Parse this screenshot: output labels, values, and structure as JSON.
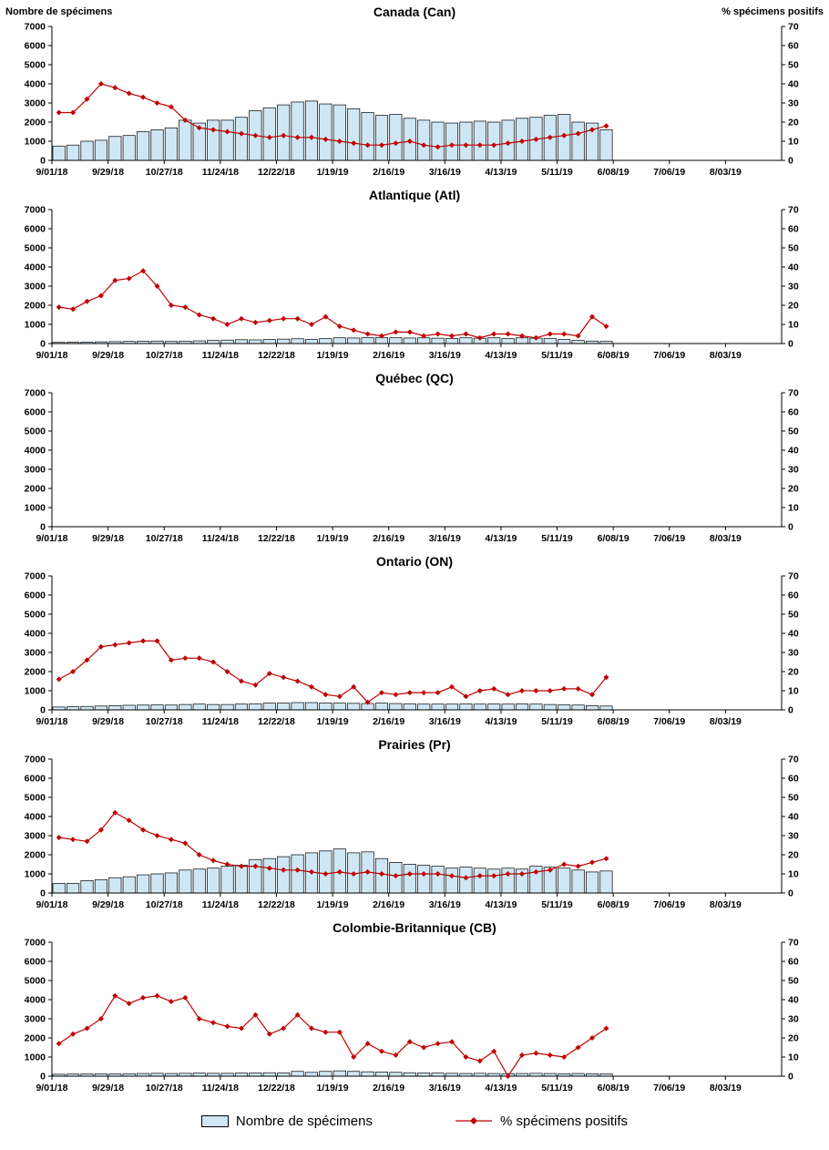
{
  "axis_captions": {
    "left": "Nombre de spécimens",
    "right": "% spécimens positifs"
  },
  "legend": {
    "bars": "Nombre de spécimens",
    "line": "% spécimens positifs"
  },
  "colors": {
    "bar_fill": "#cfe7f5",
    "bar_stroke": "#000000",
    "line": "#c00000"
  },
  "x_axis": {
    "labels": [
      "9/01/18",
      "9/29/18",
      "10/27/18",
      "11/24/18",
      "12/22/18",
      "1/19/19",
      "2/16/19",
      "3/16/19",
      "4/13/19",
      "5/11/19",
      "6/08/19",
      "7/06/19",
      "8/03/19"
    ],
    "weeks_total": 52,
    "label_interval": 4
  },
  "y_axis_left": {
    "min": 0,
    "max": 7000,
    "step": 1000,
    "label": "Nombre de spécimens"
  },
  "y_axis_right": {
    "min": 0,
    "max": 70,
    "step": 10,
    "label": "% spécimens positifs"
  },
  "chart_data": [
    {
      "title": "Canada (Can)",
      "type": "bar+line",
      "series": [
        {
          "name": "Nombre de spécimens",
          "type": "bar",
          "axis": "left",
          "values": [
            750,
            800,
            1000,
            1050,
            1250,
            1300,
            1500,
            1600,
            1700,
            2100,
            1950,
            2100,
            2100,
            2250,
            2600,
            2750,
            2900,
            3050,
            3100,
            2950,
            2900,
            2700,
            2500,
            2350,
            2400,
            2200,
            2100,
            2000,
            1950,
            2000,
            2050,
            2000,
            2100,
            2200,
            2250,
            2350,
            2400,
            2000,
            1950,
            1600
          ]
        },
        {
          "name": "% spécimens positifs",
          "type": "line",
          "axis": "right",
          "values": [
            25,
            25,
            32,
            40,
            38,
            35,
            33,
            30,
            28,
            21,
            17,
            16,
            15,
            14,
            13,
            12,
            13,
            12,
            12,
            11,
            10,
            9,
            8,
            8,
            9,
            10,
            8,
            7,
            8,
            8,
            8,
            8,
            9,
            10,
            11,
            12,
            13,
            14,
            16,
            18
          ]
        }
      ]
    },
    {
      "title": "Atlantique (Atl)",
      "type": "bar+line",
      "series": [
        {
          "name": "Nombre de spécimens",
          "type": "bar",
          "axis": "left",
          "values": [
            60,
            70,
            80,
            90,
            100,
            110,
            120,
            130,
            110,
            120,
            140,
            160,
            180,
            200,
            190,
            210,
            230,
            250,
            210,
            260,
            300,
            290,
            310,
            320,
            300,
            290,
            300,
            280,
            260,
            300,
            280,
            300,
            260,
            300,
            280,
            260,
            210,
            160,
            130,
            110
          ]
        },
        {
          "name": "% spécimens positifs",
          "type": "line",
          "axis": "right",
          "values": [
            19,
            18,
            22,
            25,
            33,
            34,
            38,
            30,
            20,
            19,
            15,
            13,
            10,
            13,
            11,
            12,
            13,
            13,
            10,
            14,
            9,
            7,
            5,
            4,
            6,
            6,
            4,
            5,
            4,
            5,
            3,
            5,
            5,
            4,
            3,
            5,
            5,
            4,
            14,
            9
          ]
        }
      ]
    },
    {
      "title": "Québec (QC)",
      "type": "bar+line",
      "series": [
        {
          "name": "Nombre de spécimens",
          "type": "bar",
          "axis": "left",
          "values": []
        },
        {
          "name": "% spécimens positifs",
          "type": "line",
          "axis": "right",
          "values": []
        }
      ]
    },
    {
      "title": "Ontario (ON)",
      "type": "bar+line",
      "series": [
        {
          "name": "Nombre de spécimens",
          "type": "bar",
          "axis": "left",
          "values": [
            150,
            160,
            180,
            200,
            220,
            240,
            250,
            260,
            250,
            280,
            300,
            280,
            280,
            300,
            320,
            350,
            350,
            380,
            380,
            360,
            350,
            340,
            330,
            350,
            330,
            320,
            300,
            300,
            300,
            310,
            300,
            310,
            300,
            320,
            300,
            280,
            260,
            250,
            220,
            200
          ]
        },
        {
          "name": "% spécimens positifs",
          "type": "line",
          "axis": "right",
          "values": [
            16,
            20,
            26,
            33,
            34,
            35,
            36,
            36,
            26,
            27,
            27,
            25,
            20,
            15,
            13,
            19,
            17,
            15,
            12,
            8,
            7,
            12,
            4,
            9,
            8,
            9,
            9,
            9,
            12,
            7,
            10,
            11,
            8,
            10,
            10,
            10,
            11,
            11,
            8,
            17
          ]
        }
      ]
    },
    {
      "title": "Prairies (Pr)",
      "type": "bar+line",
      "series": [
        {
          "name": "Nombre de spécimens",
          "type": "bar",
          "axis": "left",
          "values": [
            500,
            500,
            650,
            700,
            800,
            850,
            950,
            1000,
            1050,
            1200,
            1250,
            1300,
            1400,
            1450,
            1750,
            1800,
            1900,
            2000,
            2100,
            2200,
            2300,
            2100,
            2150,
            1800,
            1600,
            1500,
            1450,
            1400,
            1300,
            1350,
            1300,
            1250,
            1300,
            1250,
            1400,
            1350,
            1300,
            1200,
            1100,
            1150
          ]
        },
        {
          "name": "% spécimens positifs",
          "type": "line",
          "axis": "right",
          "values": [
            29,
            28,
            27,
            33,
            42,
            38,
            33,
            30,
            28,
            26,
            20,
            17,
            15,
            14,
            14,
            13,
            12,
            12,
            11,
            10,
            11,
            10,
            11,
            10,
            9,
            10,
            10,
            10,
            9,
            8,
            9,
            9,
            10,
            10,
            11,
            12,
            15,
            14,
            16,
            18
          ]
        }
      ]
    },
    {
      "title": "Colombie-Britannique (CB)",
      "type": "bar+line",
      "series": [
        {
          "name": "Nombre de spécimens",
          "type": "bar",
          "axis": "left",
          "values": [
            100,
            110,
            120,
            130,
            120,
            130,
            140,
            150,
            140,
            150,
            160,
            150,
            150,
            160,
            170,
            180,
            170,
            250,
            200,
            250,
            280,
            250,
            230,
            220,
            200,
            180,
            170,
            160,
            150,
            140,
            150,
            140,
            130,
            140,
            150,
            140,
            130,
            140,
            130,
            120
          ]
        },
        {
          "name": "% spécimens positifs",
          "type": "line",
          "axis": "right",
          "values": [
            17,
            22,
            25,
            30,
            42,
            38,
            41,
            42,
            39,
            41,
            30,
            28,
            26,
            25,
            32,
            22,
            25,
            32,
            25,
            23,
            23,
            10,
            17,
            13,
            11,
            18,
            15,
            17,
            18,
            10,
            8,
            13,
            0,
            11,
            12,
            11,
            10,
            15,
            20,
            25
          ]
        }
      ]
    }
  ]
}
